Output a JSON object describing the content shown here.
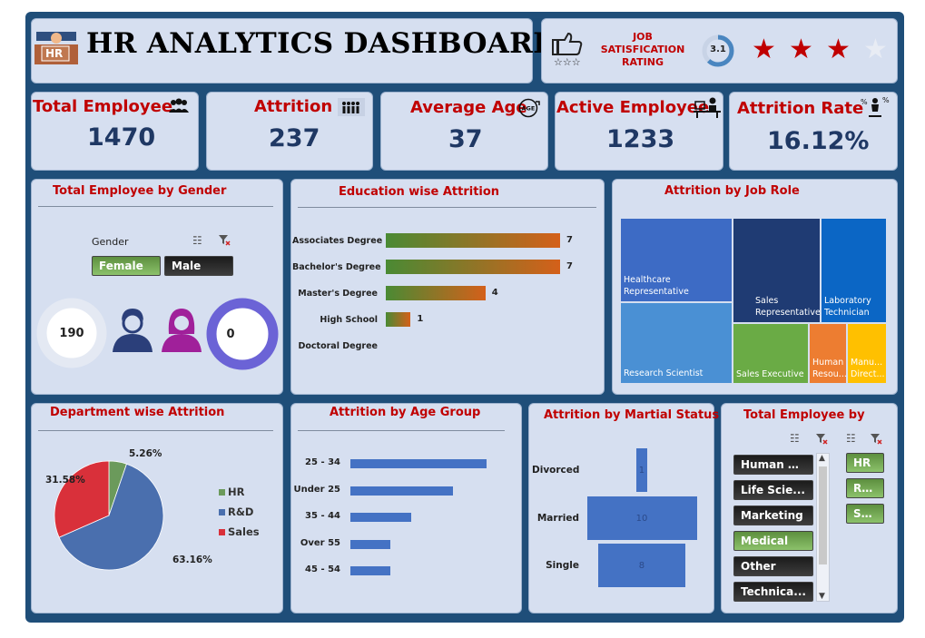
{
  "header": {
    "title": "HR ANALYTICS DASHBOARD",
    "logo_icon": "hr-desk-icon",
    "logo_text": "HR"
  },
  "job_satisfaction": {
    "label_line1": "JOB",
    "label_line2": "SATISFICATION",
    "label_line3": "RATING",
    "score": "3.1",
    "rating_fraction": 0.62,
    "stars_filled": 3,
    "stars_total": 4,
    "star_color": "#c00000",
    "icon": "thumbs-up-stars-icon"
  },
  "kpis": [
    {
      "label": "Total Employee",
      "value": "1470",
      "icon": "people-icon"
    },
    {
      "label": "Attrition",
      "value": "237",
      "icon": "people-leaving-icon"
    },
    {
      "label": "Average Age",
      "value": "37",
      "icon": "age-icon"
    },
    {
      "label": "Active Employee",
      "value": "1233",
      "icon": "employee-desk-icon"
    },
    {
      "label": "Attrition Rate",
      "value": "16.12%",
      "icon": "attrition-rate-icon"
    }
  ],
  "gender": {
    "title": "Total Employee by Gender",
    "slicer_title": "Gender",
    "options": [
      "Female",
      "Male"
    ],
    "female_count": "190",
    "male_count": "0"
  },
  "education": {
    "title": "Education wise Attrition",
    "chart_data": {
      "type": "bar",
      "categories": [
        "Associates Degree",
        "Bachelor's Degree",
        "Master's Degree",
        "High School",
        "Doctoral Degree"
      ],
      "values": [
        7,
        7,
        4,
        1,
        null
      ],
      "labels": [
        "7",
        "7",
        "4",
        "1",
        ""
      ]
    }
  },
  "job_role": {
    "title": "Attrition by Job Role",
    "tiles": [
      "Healthcare Representative",
      "Research Scientist",
      "Sales Representative",
      "Sales Executive",
      "Laboratory Technician",
      "Human Resou...",
      "Manu... Direct..."
    ]
  },
  "department": {
    "title": "Department wise Attrition",
    "chart_data": {
      "type": "pie",
      "categories": [
        "HR",
        "R&D",
        "Sales"
      ],
      "values": [
        5.26,
        63.16,
        31.58
      ],
      "labels": [
        "5.26%",
        "63.16%",
        "31.58%"
      ],
      "colors": [
        "#6b9a5b",
        "#4a6fae",
        "#d9303a"
      ],
      "legend_position": "right"
    }
  },
  "age_group": {
    "title": "Attrition by Age Group",
    "chart_data": {
      "type": "bar",
      "categories": [
        "25 - 34",
        "Under 25",
        "35 - 44",
        "Over 55",
        "45 - 54"
      ],
      "values": [
        8.5,
        6.4,
        3.8,
        2.5,
        2.5
      ]
    }
  },
  "marital": {
    "title": "Attrition by Martial Status",
    "chart_data": {
      "type": "bar",
      "categories": [
        "Divorced",
        "Married",
        "Single"
      ],
      "values": [
        1,
        10,
        8
      ],
      "labels": [
        "1",
        "10",
        "8"
      ]
    }
  },
  "total_by": {
    "title": "Total Employee by",
    "field_options": [
      "Human R...",
      "Life Scie...",
      "Marketing",
      "Medical",
      "Other",
      "Technica..."
    ],
    "selected_field": "Medical",
    "dept_options": [
      "HR",
      "R&D",
      "Sa..."
    ]
  }
}
